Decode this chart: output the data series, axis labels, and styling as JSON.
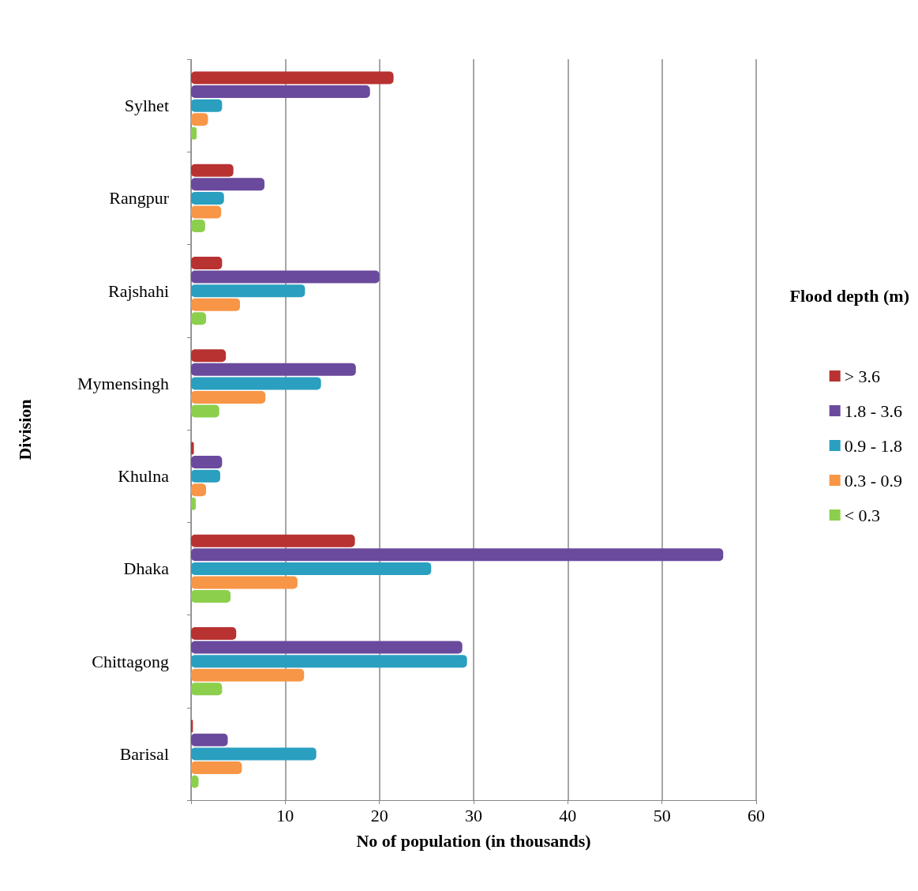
{
  "chart_data": {
    "type": "bar",
    "orientation": "horizontal",
    "xlabel": "No of population (in thousands)",
    "ylabel": "Division",
    "legend_title": "Flood depth (m)",
    "legend": "right",
    "grid": "x",
    "categories": [
      "Sylhet",
      "Rangpur",
      "Rajshahi",
      "Mymensingh",
      "Khulna",
      "Dhaka",
      "Chittagong",
      "Barisal"
    ],
    "xlim": [
      0,
      60
    ],
    "xticks": [
      {
        "value": 0,
        "label": null
      },
      10,
      20,
      30,
      40,
      50,
      60
    ],
    "series": [
      {
        "name": "> 3.6",
        "color": "#b83232",
        "values": [
          21.5,
          4.5,
          3.3,
          3.7,
          0.3,
          17.4,
          4.8,
          0.2
        ]
      },
      {
        "name": "1.8 - 3.6",
        "color": "#6a4a9c",
        "values": [
          19.0,
          7.8,
          20.0,
          17.5,
          3.3,
          56.5,
          28.8,
          3.9
        ]
      },
      {
        "name": "0.9 - 1.8",
        "color": "#2a9fbf",
        "values": [
          3.3,
          3.5,
          12.1,
          13.8,
          3.1,
          25.5,
          29.3,
          13.3
        ]
      },
      {
        "name": "0.3 - 0.9",
        "color": "#f79646",
        "values": [
          1.8,
          3.2,
          5.2,
          7.9,
          1.6,
          11.3,
          12.0,
          5.4
        ]
      },
      {
        "name": "< 0.3",
        "color": "#8ccf4d",
        "values": [
          0.6,
          1.5,
          1.6,
          3.0,
          0.5,
          4.2,
          3.3,
          0.8
        ]
      }
    ]
  }
}
